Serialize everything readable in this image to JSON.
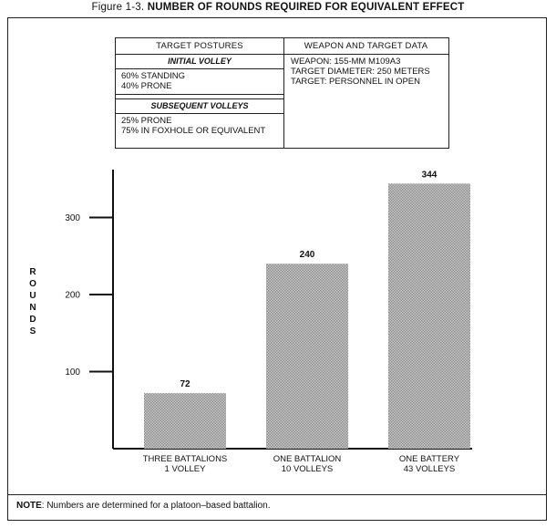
{
  "figure": {
    "label": "Figure 1-3.",
    "title": "NUMBER OF ROUNDS REQUIRED FOR EQUIVALENT EFFECT"
  },
  "table": {
    "left_header": "TARGET POSTURES",
    "initial_header": "INITIAL VOLLEY",
    "initial_lines": [
      "60% STANDING",
      "40% PRONE"
    ],
    "subsequent_header": "SUBSEQUENT VOLLEYS",
    "subsequent_lines": [
      "25% PRONE",
      "75% IN FOXHOLE OR EQUIVALENT"
    ],
    "right_header": "WEAPON AND TARGET DATA",
    "right_lines": [
      "WEAPON:  155-MM M109A3",
      "TARGET DIAMETER:  250 METERS",
      "TARGET:  PERSONNEL IN OPEN"
    ]
  },
  "note": {
    "label": "NOTE",
    "text": ":  Numbers are determined for a platoon–based battalion."
  },
  "chart_data": {
    "type": "bar",
    "title": "NUMBER OF ROUNDS REQUIRED FOR EQUIVALENT EFFECT",
    "ylabel": "ROUNDS",
    "xlabel": "",
    "categories": [
      [
        "THREE BATTALIONS",
        "1 VOLLEY"
      ],
      [
        "ONE BATTALION",
        "10 VOLLEYS"
      ],
      [
        "ONE BATTERY",
        "43 VOLLEYS"
      ]
    ],
    "values": [
      72,
      240,
      344
    ],
    "data_labels": [
      "72",
      "240",
      "344"
    ],
    "yticks": [
      100,
      200,
      300
    ],
    "ytick_labels": [
      "100",
      "200",
      "300"
    ],
    "ylim": [
      0,
      370
    ],
    "grid": false,
    "bar_color": "#b9b9b9"
  }
}
